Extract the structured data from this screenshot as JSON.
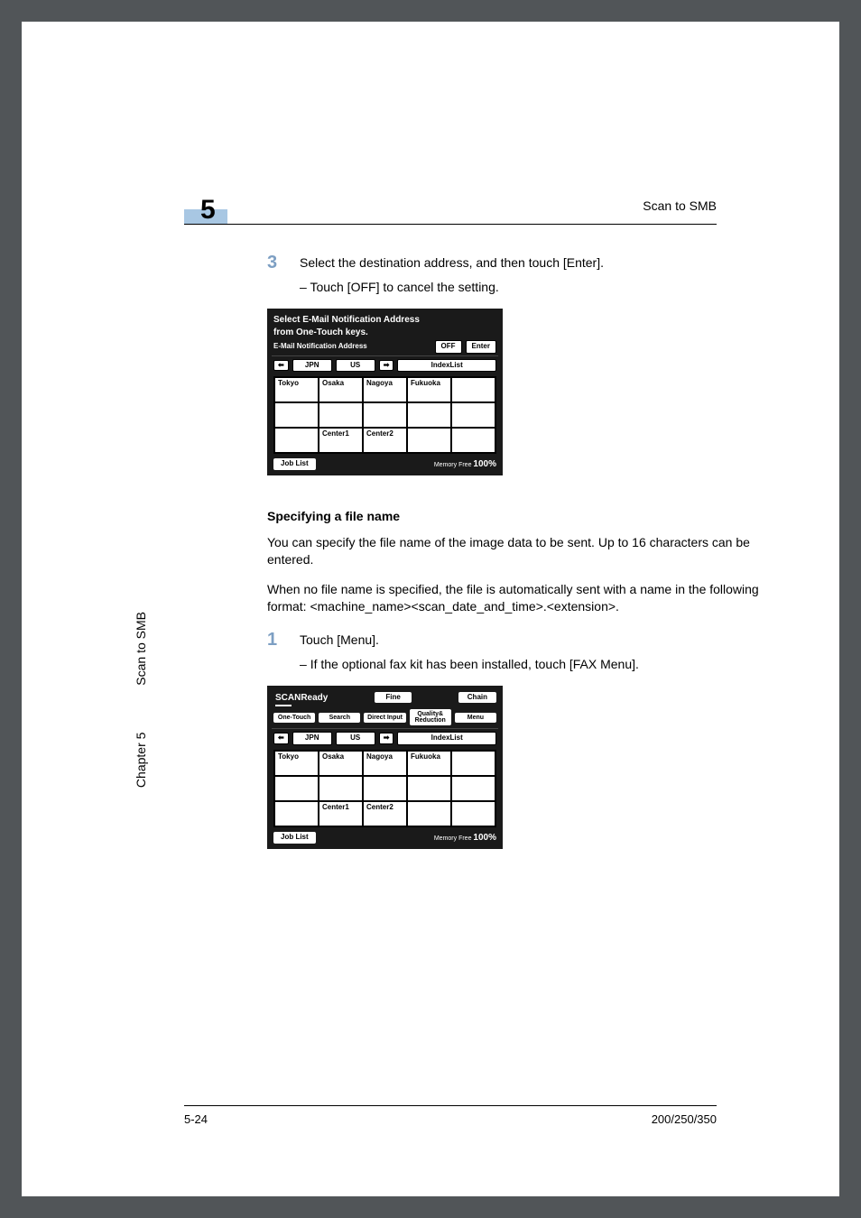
{
  "header": {
    "chapter_number": "5",
    "title_right": "Scan to SMB"
  },
  "sidebar": {
    "chapter_label": "Chapter 5",
    "section_label": "Scan to SMB"
  },
  "steps": {
    "s3": {
      "num": "3",
      "text": "Select the destination address, and then touch [Enter].",
      "sub": "Touch [OFF] to cancel the setting."
    },
    "s1": {
      "num": "1",
      "text": "Touch [Menu].",
      "sub": "If the optional fax kit has been installed, touch [FAX Menu]."
    }
  },
  "section": {
    "heading": "Specifying a file name",
    "p1": "You can specify the file name of the image data to be sent. Up to 16 characters can be entered.",
    "p2": "When no file name is specified, the file is automatically sent with a name in the following format: <machine_name><scan_date_and_time>.<extension>."
  },
  "lcd1": {
    "title1": "Select E-Mail Notification Address",
    "title2": "from One-Touch keys.",
    "subrow_label": "E-Mail Notification Address",
    "off_btn": "OFF",
    "enter_btn": "Enter",
    "tabs": {
      "jpn": "JPN",
      "us": "US",
      "indexlist": "IndexList"
    },
    "grid": {
      "r0": [
        "Tokyo",
        "Osaka",
        "Nagoya",
        "Fukuoka",
        ""
      ],
      "r1": [
        "",
        "",
        "",
        "",
        ""
      ],
      "r2": [
        "",
        "Center1",
        "Center2",
        "",
        ""
      ]
    },
    "joblist": "Job List",
    "mem_label": "Memory Free",
    "mem_pct": "100%"
  },
  "lcd2": {
    "status": "SCANReady",
    "fine": "Fine",
    "chain": "Chain",
    "modebar": {
      "onetouch": "One-Touch",
      "search": "Search",
      "direct": "Direct Input",
      "quality": "Quality& Reduction",
      "menu": "Menu"
    },
    "tabs": {
      "jpn": "JPN",
      "us": "US",
      "indexlist": "IndexList"
    },
    "grid": {
      "r0": [
        "Tokyo",
        "Osaka",
        "Nagoya",
        "Fukuoka",
        ""
      ],
      "r1": [
        "",
        "",
        "",
        "",
        ""
      ],
      "r2": [
        "",
        "Center1",
        "Center2",
        "",
        ""
      ]
    },
    "joblist": "Job List",
    "mem_label": "Memory Free",
    "mem_pct": "100%"
  },
  "footer": {
    "page": "5-24",
    "model": "200/250/350"
  },
  "colors": {
    "page_bg": "#ffffff",
    "outer_bg": "#515558",
    "accent": "#a8c7e3",
    "step_num": "#7d9fc3",
    "lcd_bg": "#1a1a1a"
  }
}
